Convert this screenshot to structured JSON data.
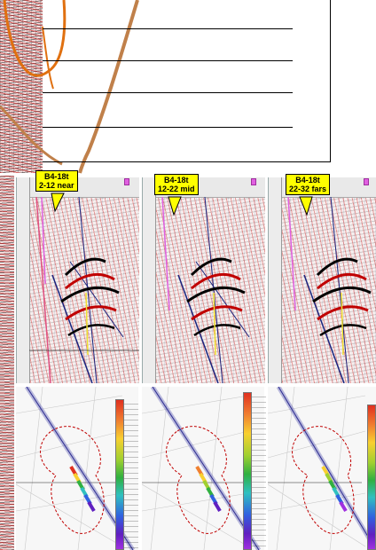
{
  "labels": [
    {
      "line1": "B4-18t",
      "line2": "2-12  near"
    },
    {
      "line1": "B4-18t",
      "line2": "12-22  mid"
    },
    {
      "line1": "B4-18t",
      "line2": "22-32  fars"
    }
  ],
  "icons": {
    "well_marker": "well-marker-icon"
  },
  "colors": {
    "label_bg": "#ffff00",
    "fault_line": "#1a237e",
    "well_path": "#c0804a",
    "horizon": "#e06010",
    "outline": "#c00000"
  }
}
